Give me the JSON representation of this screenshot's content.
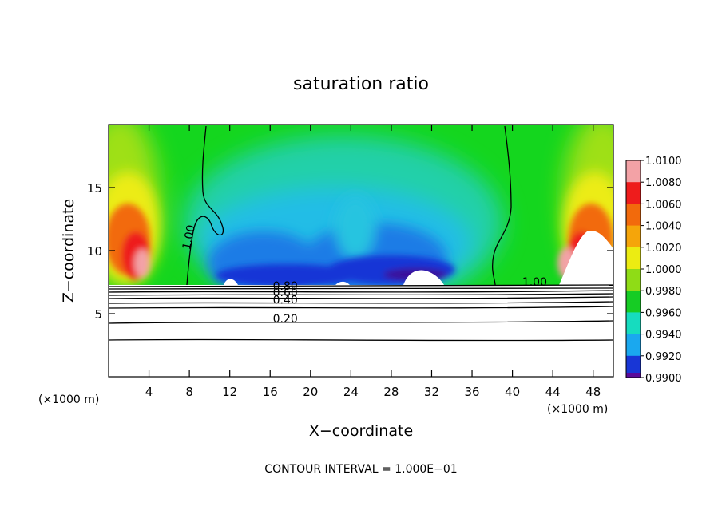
{
  "chart_data": {
    "type": "heatmap",
    "title": "saturation ratio",
    "xlabel": "X−coordinate",
    "ylabel": "Z−coordinate",
    "x_unit_left": "(×1000 m)",
    "x_unit_right": "(×1000 m)",
    "footer": "CONTOUR INTERVAL = 1.000E−01",
    "xlim": [
      0,
      50
    ],
    "ylim": [
      0,
      20
    ],
    "xticks": [
      {
        "value": 4,
        "label": "4"
      },
      {
        "value": 8,
        "label": "8"
      },
      {
        "value": 12,
        "label": "12"
      },
      {
        "value": 16,
        "label": "16"
      },
      {
        "value": 20,
        "label": "20"
      },
      {
        "value": 24,
        "label": "24"
      },
      {
        "value": 28,
        "label": "28"
      },
      {
        "value": 32,
        "label": "32"
      },
      {
        "value": 36,
        "label": "36"
      },
      {
        "value": 40,
        "label": "40"
      },
      {
        "value": 44,
        "label": "44"
      },
      {
        "value": 48,
        "label": "48"
      }
    ],
    "yticks": [
      {
        "value": 5,
        "label": "5"
      },
      {
        "value": 10,
        "label": "10"
      },
      {
        "value": 15,
        "label": "15"
      }
    ],
    "colorbar": {
      "levels": [
        {
          "value": 1.01,
          "label": "1.0100",
          "color": "#f3a2a6"
        },
        {
          "value": 1.008,
          "label": "1.0080",
          "color": "#ee1c1c"
        },
        {
          "value": 1.006,
          "label": "1.0060",
          "color": "#f26a0c"
        },
        {
          "value": 1.004,
          "label": "1.0040",
          "color": "#f5a50a"
        },
        {
          "value": 1.002,
          "label": "1.0020",
          "color": "#ecec12"
        },
        {
          "value": 1.0,
          "label": "1.0000",
          "color": "#8fdc16"
        },
        {
          "value": 0.998,
          "label": "0.9980",
          "color": "#16cc24"
        },
        {
          "value": 0.996,
          "label": "0.9960",
          "color": "#16dcbf"
        },
        {
          "value": 0.994,
          "label": "0.9940",
          "color": "#1aa8ef"
        },
        {
          "value": 0.992,
          "label": "0.9920",
          "color": "#1836d6"
        },
        {
          "value": 0.99,
          "label": "0.9900",
          "color": "#5a0a9a"
        }
      ]
    },
    "contour_labels": [
      {
        "text": "1.00",
        "x": 8.3,
        "z": 11.0
      },
      {
        "text": "1.00",
        "x": 42.2,
        "z": 7.2
      },
      {
        "text": "0.80",
        "x": 17.5,
        "z": 6.9
      },
      {
        "text": "0.60",
        "x": 17.5,
        "z": 6.4
      },
      {
        "text": "0.40",
        "x": 17.5,
        "z": 5.8
      },
      {
        "text": "0.20",
        "x": 17.5,
        "z": 4.3
      }
    ],
    "contour_levels": [
      0.2,
      0.4,
      0.6,
      0.8,
      1.0
    ],
    "grid": false,
    "legend": "right"
  }
}
